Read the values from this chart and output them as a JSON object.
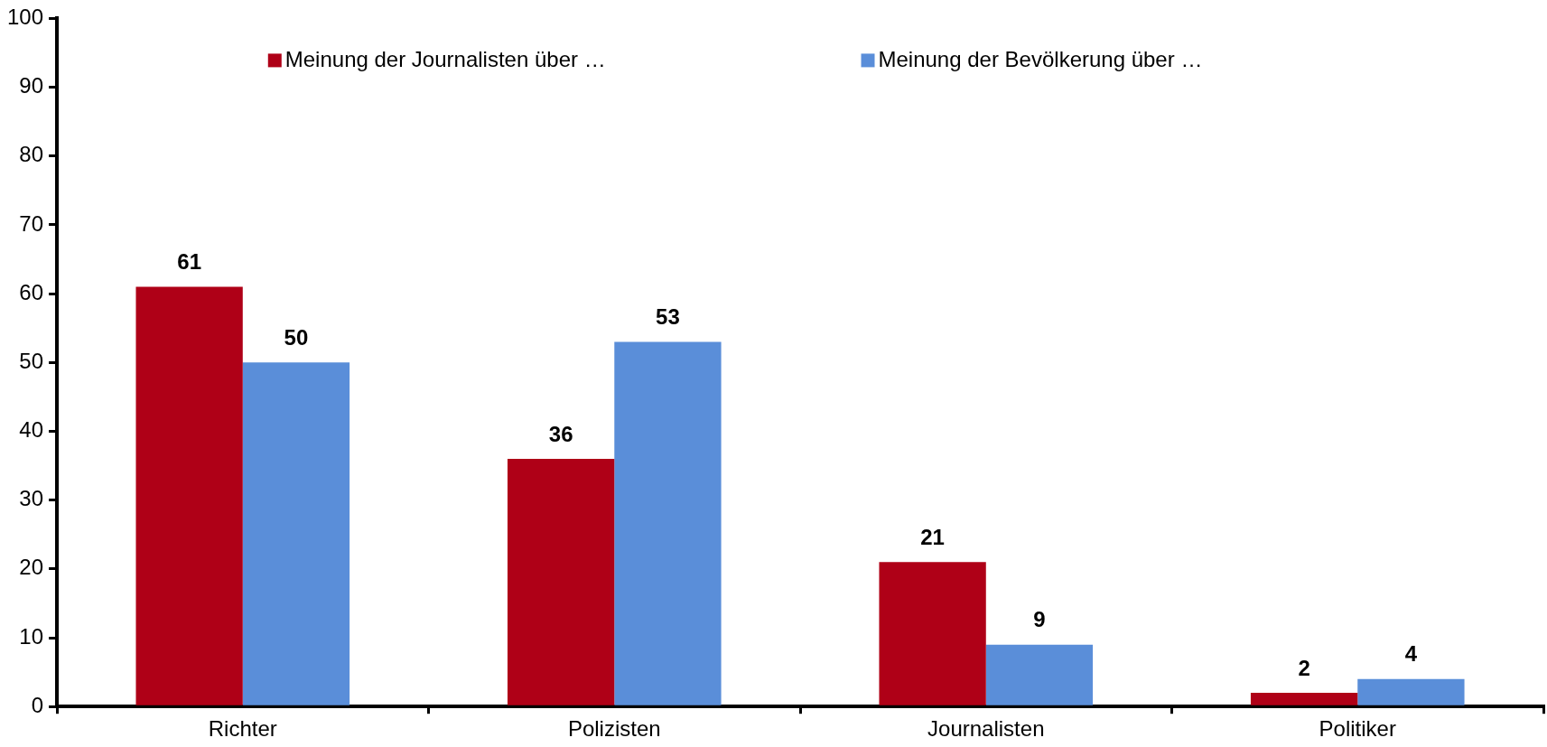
{
  "chart_data": {
    "type": "bar",
    "categories": [
      "Richter",
      "Polizisten",
      "Journalisten",
      "Politiker"
    ],
    "series": [
      {
        "name": "Meinung der Journalisten über …",
        "color": "#af0017",
        "values": [
          61,
          36,
          21,
          2
        ]
      },
      {
        "name": "Meinung der Bevölkerung über …",
        "color": "#5a8ed9",
        "values": [
          50,
          53,
          9,
          4
        ]
      }
    ],
    "ylim": [
      0,
      100
    ],
    "yticks": [
      0,
      10,
      20,
      30,
      40,
      50,
      60,
      70,
      80,
      90,
      100
    ],
    "legend": "top",
    "data_labels": true
  }
}
